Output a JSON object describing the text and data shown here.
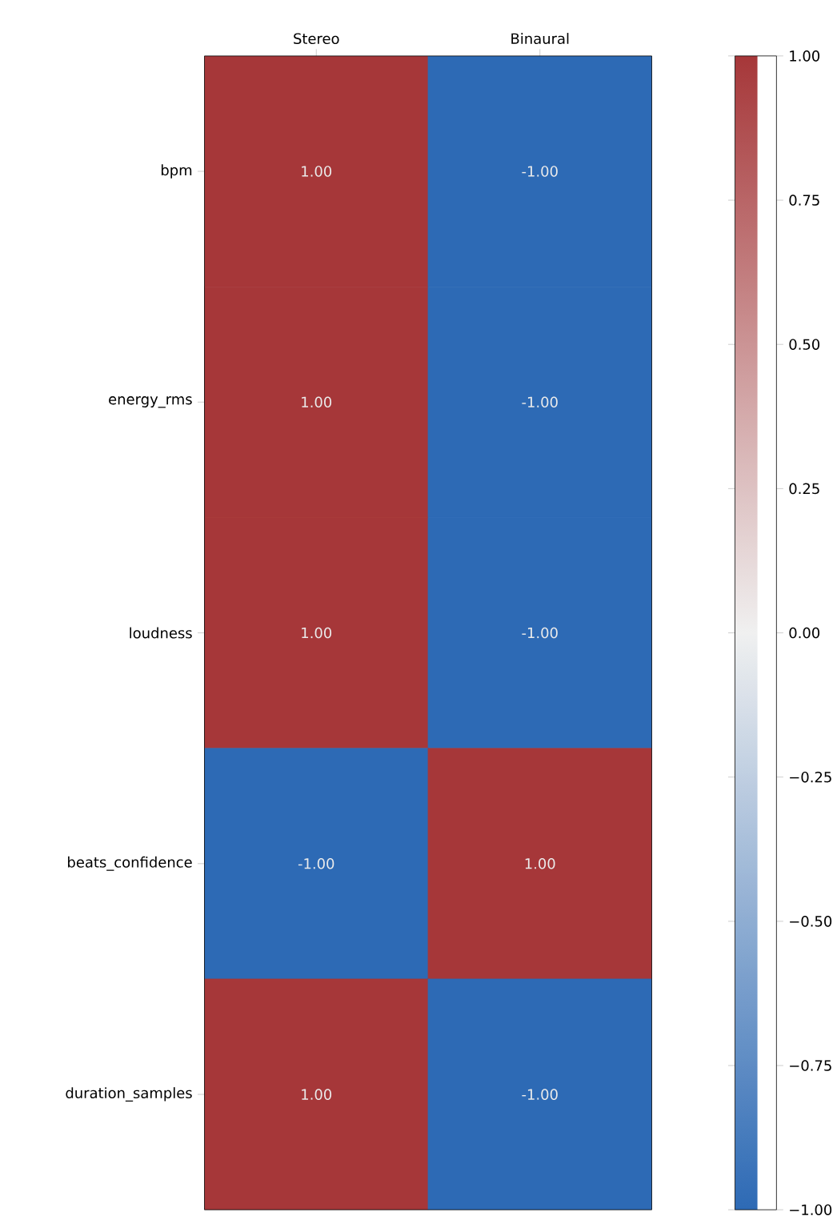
{
  "chart_data": {
    "type": "heatmap",
    "categories": [
      "Stereo",
      "Binaural"
    ],
    "y_categories": [
      "bpm",
      "energy_rms",
      "loudness",
      "beats_confidence",
      "duration_samples"
    ],
    "cells": [
      [
        1,
        -1
      ],
      [
        1,
        -1
      ],
      [
        1,
        -1
      ],
      [
        -1,
        1
      ],
      [
        1,
        -1
      ]
    ],
    "cell_labels": [
      [
        "1.00",
        "-1.00"
      ],
      [
        "1.00",
        "-1.00"
      ],
      [
        "1.00",
        "-1.00"
      ],
      [
        "-1.00",
        "1.00"
      ],
      [
        "1.00",
        "-1.00"
      ]
    ],
    "clim": [
      -1,
      1
    ],
    "cticks": [
      {
        "value": -1,
        "label": "−1.00"
      },
      {
        "value": -0.75,
        "label": "−0.75"
      },
      {
        "value": -0.5,
        "label": "−0.50"
      },
      {
        "value": -0.25,
        "label": "−0.25"
      },
      {
        "value": 0,
        "label": "0.00"
      },
      {
        "value": 0.25,
        "label": "0.25"
      },
      {
        "value": 0.5,
        "label": "0.50"
      },
      {
        "value": 0.75,
        "label": "0.75"
      },
      {
        "value": 1,
        "label": "1.00"
      }
    ]
  }
}
